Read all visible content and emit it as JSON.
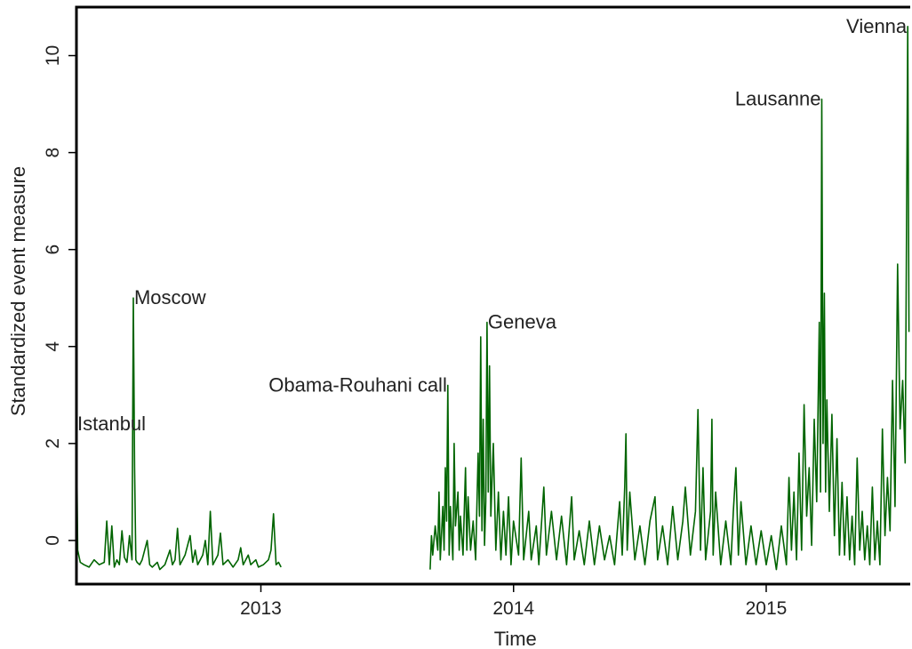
{
  "chart_data": {
    "type": "line",
    "title": "",
    "xlabel": "Time",
    "ylabel": "Standardized event measure",
    "xlim": [
      2012.27,
      2015.57
    ],
    "ylim": [
      -0.9,
      11
    ],
    "x_ticks": [
      {
        "value": 2013,
        "label": "2013"
      },
      {
        "value": 2014,
        "label": "2014"
      },
      {
        "value": 2015,
        "label": "2015"
      }
    ],
    "y_ticks": [
      {
        "value": 0,
        "label": "0"
      },
      {
        "value": 2,
        "label": "2"
      },
      {
        "value": 4,
        "label": "4"
      },
      {
        "value": 6,
        "label": "6"
      },
      {
        "value": 8,
        "label": "8"
      },
      {
        "value": 10,
        "label": "10"
      }
    ],
    "grid": false,
    "line_color": "#006400",
    "series": [
      {
        "points": [
          [
            2012.27,
            2.4
          ],
          [
            2012.275,
            -0.2
          ],
          [
            2012.285,
            -0.45
          ],
          [
            2012.3,
            -0.5
          ],
          [
            2012.32,
            -0.55
          ],
          [
            2012.34,
            -0.4
          ],
          [
            2012.36,
            -0.5
          ],
          [
            2012.38,
            -0.45
          ],
          [
            2012.39,
            0.4
          ],
          [
            2012.4,
            -0.5
          ],
          [
            2012.41,
            0.3
          ],
          [
            2012.42,
            -0.55
          ],
          [
            2012.43,
            -0.4
          ],
          [
            2012.44,
            -0.5
          ],
          [
            2012.45,
            0.2
          ],
          [
            2012.46,
            -0.35
          ],
          [
            2012.47,
            -0.45
          ],
          [
            2012.48,
            0.1
          ],
          [
            2012.49,
            -0.4
          ],
          [
            2012.495,
            5.0
          ],
          [
            2012.5,
            1.5
          ],
          [
            2012.505,
            -0.4
          ],
          [
            2012.51,
            -0.45
          ],
          [
            2012.52,
            -0.5
          ],
          [
            2012.53,
            -0.4
          ],
          [
            2012.55,
            0.0
          ],
          [
            2012.56,
            -0.5
          ],
          [
            2012.57,
            -0.55
          ],
          [
            2012.59,
            -0.45
          ],
          [
            2012.6,
            -0.6
          ],
          [
            2012.62,
            -0.5
          ],
          [
            2012.64,
            -0.2
          ],
          [
            2012.65,
            -0.5
          ],
          [
            2012.66,
            -0.4
          ],
          [
            2012.67,
            0.25
          ],
          [
            2012.68,
            -0.5
          ],
          [
            2012.7,
            -0.3
          ],
          [
            2012.72,
            0.1
          ],
          [
            2012.73,
            -0.45
          ],
          [
            2012.74,
            -0.2
          ],
          [
            2012.75,
            -0.5
          ],
          [
            2012.77,
            -0.3
          ],
          [
            2012.78,
            0.0
          ],
          [
            2012.79,
            -0.5
          ],
          [
            2012.8,
            0.6
          ],
          [
            2012.81,
            -0.5
          ],
          [
            2012.83,
            -0.3
          ],
          [
            2012.84,
            0.15
          ],
          [
            2012.85,
            -0.5
          ],
          [
            2012.87,
            -0.4
          ],
          [
            2012.89,
            -0.55
          ],
          [
            2012.91,
            -0.4
          ],
          [
            2012.92,
            -0.15
          ],
          [
            2012.93,
            -0.5
          ],
          [
            2012.95,
            -0.3
          ],
          [
            2012.96,
            -0.5
          ],
          [
            2012.98,
            -0.4
          ],
          [
            2012.99,
            -0.55
          ],
          [
            2013.01,
            -0.5
          ],
          [
            2013.03,
            -0.4
          ],
          [
            2013.04,
            -0.2
          ],
          [
            2013.05,
            0.55
          ],
          [
            2013.06,
            -0.5
          ],
          [
            2013.07,
            -0.45
          ],
          [
            2013.08,
            -0.55
          ]
        ]
      },
      {
        "points": [
          [
            2013.67,
            -0.6
          ],
          [
            2013.675,
            0.1
          ],
          [
            2013.68,
            -0.3
          ],
          [
            2013.69,
            0.3
          ],
          [
            2013.7,
            -0.2
          ],
          [
            2013.705,
            1.0
          ],
          [
            2013.71,
            -0.4
          ],
          [
            2013.72,
            0.7
          ],
          [
            2013.725,
            -0.2
          ],
          [
            2013.73,
            1.5
          ],
          [
            2013.735,
            0.4
          ],
          [
            2013.74,
            3.2
          ],
          [
            2013.745,
            -0.3
          ],
          [
            2013.75,
            0.7
          ],
          [
            2013.76,
            -0.4
          ],
          [
            2013.765,
            2.0
          ],
          [
            2013.77,
            0.3
          ],
          [
            2013.78,
            1.0
          ],
          [
            2013.785,
            -0.2
          ],
          [
            2013.79,
            0.5
          ],
          [
            2013.8,
            -0.3
          ],
          [
            2013.81,
            1.5
          ],
          [
            2013.815,
            -0.2
          ],
          [
            2013.82,
            0.9
          ],
          [
            2013.83,
            -0.2
          ],
          [
            2013.84,
            0.4
          ],
          [
            2013.85,
            -0.4
          ],
          [
            2013.86,
            1.8
          ],
          [
            2013.865,
            0.5
          ],
          [
            2013.87,
            4.2
          ],
          [
            2013.875,
            0.2
          ],
          [
            2013.88,
            2.5
          ],
          [
            2013.885,
            -0.1
          ],
          [
            2013.89,
            0.8
          ],
          [
            2013.895,
            4.5
          ],
          [
            2013.9,
            1.0
          ],
          [
            2013.905,
            3.6
          ],
          [
            2013.91,
            0.5
          ],
          [
            2013.92,
            2.0
          ],
          [
            2013.93,
            -0.2
          ],
          [
            2013.94,
            1.0
          ],
          [
            2013.95,
            -0.4
          ],
          [
            2013.96,
            0.6
          ],
          [
            2013.97,
            -0.3
          ],
          [
            2013.98,
            0.9
          ],
          [
            2013.99,
            -0.5
          ],
          [
            2014.0,
            0.4
          ],
          [
            2014.02,
            -0.3
          ],
          [
            2014.03,
            1.7
          ],
          [
            2014.04,
            -0.4
          ],
          [
            2014.06,
            0.6
          ],
          [
            2014.07,
            -0.4
          ],
          [
            2014.09,
            0.3
          ],
          [
            2014.1,
            -0.5
          ],
          [
            2014.12,
            1.1
          ],
          [
            2014.13,
            -0.3
          ],
          [
            2014.15,
            0.6
          ],
          [
            2014.17,
            -0.4
          ],
          [
            2014.19,
            0.5
          ],
          [
            2014.21,
            -0.5
          ],
          [
            2014.23,
            0.9
          ],
          [
            2014.24,
            -0.4
          ],
          [
            2014.26,
            0.2
          ],
          [
            2014.28,
            -0.5
          ],
          [
            2014.3,
            0.4
          ],
          [
            2014.32,
            -0.5
          ],
          [
            2014.34,
            0.3
          ],
          [
            2014.36,
            -0.4
          ],
          [
            2014.38,
            0.1
          ],
          [
            2014.4,
            -0.5
          ],
          [
            2014.42,
            0.8
          ],
          [
            2014.43,
            -0.3
          ],
          [
            2014.44,
            1.1
          ],
          [
            2014.445,
            2.2
          ],
          [
            2014.45,
            -0.2
          ],
          [
            2014.46,
            1.0
          ],
          [
            2014.48,
            -0.4
          ],
          [
            2014.5,
            0.3
          ],
          [
            2014.52,
            -0.5
          ],
          [
            2014.54,
            0.4
          ],
          [
            2014.56,
            0.9
          ],
          [
            2014.57,
            -0.4
          ],
          [
            2014.59,
            0.3
          ],
          [
            2014.61,
            -0.5
          ],
          [
            2014.63,
            0.7
          ],
          [
            2014.65,
            -0.4
          ],
          [
            2014.67,
            0.4
          ],
          [
            2014.68,
            1.1
          ],
          [
            2014.7,
            -0.3
          ],
          [
            2014.72,
            0.6
          ],
          [
            2014.73,
            2.7
          ],
          [
            2014.74,
            -0.2
          ],
          [
            2014.75,
            1.5
          ],
          [
            2014.76,
            -0.4
          ],
          [
            2014.78,
            0.6
          ],
          [
            2014.785,
            2.5
          ],
          [
            2014.79,
            -0.3
          ],
          [
            2014.8,
            1.0
          ],
          [
            2014.82,
            -0.5
          ],
          [
            2014.84,
            0.4
          ],
          [
            2014.86,
            -0.5
          ],
          [
            2014.87,
            0.6
          ],
          [
            2014.88,
            1.5
          ],
          [
            2014.89,
            -0.3
          ],
          [
            2014.9,
            0.8
          ],
          [
            2014.92,
            -0.5
          ],
          [
            2014.94,
            0.3
          ],
          [
            2014.96,
            -0.5
          ],
          [
            2014.98,
            0.2
          ],
          [
            2015.0,
            -0.5
          ],
          [
            2015.02,
            0.1
          ],
          [
            2015.04,
            -0.6
          ],
          [
            2015.06,
            0.3
          ],
          [
            2015.08,
            -0.5
          ],
          [
            2015.09,
            1.3
          ],
          [
            2015.1,
            -0.2
          ],
          [
            2015.11,
            1.0
          ],
          [
            2015.12,
            -0.4
          ],
          [
            2015.13,
            1.8
          ],
          [
            2015.14,
            -0.2
          ],
          [
            2015.15,
            2.8
          ],
          [
            2015.16,
            0.5
          ],
          [
            2015.17,
            1.5
          ],
          [
            2015.18,
            -0.1
          ],
          [
            2015.19,
            2.5
          ],
          [
            2015.2,
            0.8
          ],
          [
            2015.21,
            4.5
          ],
          [
            2015.215,
            1.0
          ],
          [
            2015.22,
            9.1
          ],
          [
            2015.225,
            2.0
          ],
          [
            2015.23,
            5.1
          ],
          [
            2015.235,
            1.0
          ],
          [
            2015.24,
            2.9
          ],
          [
            2015.25,
            0.6
          ],
          [
            2015.26,
            2.6
          ],
          [
            2015.27,
            0.1
          ],
          [
            2015.28,
            2.1
          ],
          [
            2015.29,
            -0.3
          ],
          [
            2015.3,
            1.2
          ],
          [
            2015.31,
            -0.3
          ],
          [
            2015.32,
            0.9
          ],
          [
            2015.33,
            -0.4
          ],
          [
            2015.34,
            0.5
          ],
          [
            2015.35,
            -0.5
          ],
          [
            2015.36,
            1.7
          ],
          [
            2015.37,
            -0.2
          ],
          [
            2015.38,
            0.6
          ],
          [
            2015.39,
            -0.4
          ],
          [
            2015.4,
            0.3
          ],
          [
            2015.41,
            -0.5
          ],
          [
            2015.42,
            1.1
          ],
          [
            2015.43,
            -0.4
          ],
          [
            2015.44,
            0.4
          ],
          [
            2015.45,
            -0.5
          ],
          [
            2015.46,
            2.3
          ],
          [
            2015.47,
            0.1
          ],
          [
            2015.48,
            1.3
          ],
          [
            2015.49,
            0.2
          ],
          [
            2015.5,
            3.3
          ],
          [
            2015.51,
            0.7
          ],
          [
            2015.52,
            5.7
          ],
          [
            2015.53,
            2.3
          ],
          [
            2015.54,
            3.3
          ],
          [
            2015.55,
            1.6
          ],
          [
            2015.56,
            10.6
          ],
          [
            2015.565,
            4.3
          ]
        ]
      }
    ],
    "annotations": [
      {
        "text": "Istanbul",
        "x": 2012.27,
        "y": 2.4,
        "anchor": "start"
      },
      {
        "text": "Moscow",
        "x": 2012.495,
        "y": 5.0,
        "anchor": "start"
      },
      {
        "text": "Obama-Rouhani call",
        "x": 2013.74,
        "y": 3.2,
        "anchor": "end"
      },
      {
        "text": "Geneva",
        "x": 2013.895,
        "y": 4.5,
        "anchor": "start"
      },
      {
        "text": "Lausanne",
        "x": 2015.22,
        "y": 9.1,
        "anchor": "end"
      },
      {
        "text": "Vienna",
        "x": 2015.56,
        "y": 10.6,
        "anchor": "end"
      }
    ]
  }
}
